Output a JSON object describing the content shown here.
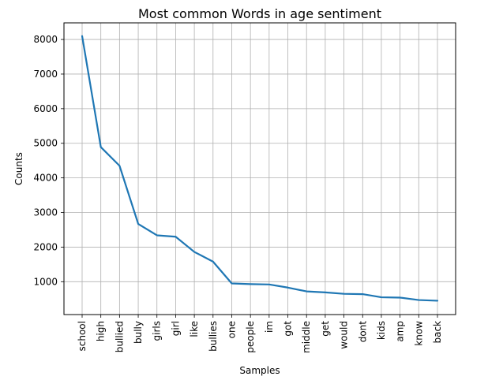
{
  "chart_data": {
    "type": "line",
    "title": "Most common Words in age sentiment",
    "xlabel": "Samples",
    "ylabel": "Counts",
    "categories": [
      "school",
      "high",
      "bullied",
      "bully",
      "girls",
      "girl",
      "like",
      "bullies",
      "one",
      "people",
      "im",
      "got",
      "middle",
      "get",
      "would",
      "dont",
      "kids",
      "amp",
      "know",
      "back"
    ],
    "values": [
      8100,
      4890,
      4350,
      2670,
      2340,
      2300,
      1860,
      1580,
      950,
      930,
      920,
      830,
      720,
      690,
      650,
      640,
      550,
      540,
      470,
      450
    ],
    "y_ticks": [
      1000,
      2000,
      3000,
      4000,
      5000,
      6000,
      7000,
      8000
    ],
    "ylim": [
      50,
      8480
    ],
    "grid": true,
    "line_color": "#1f77b4"
  }
}
